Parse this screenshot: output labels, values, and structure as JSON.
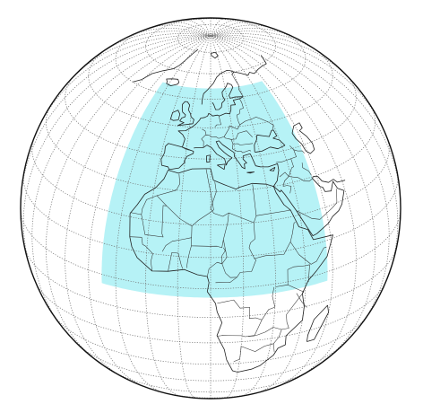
{
  "map": {
    "projection": "orthographic",
    "center": {
      "lon": 10,
      "lat": 25
    },
    "graticule_step_deg": 10,
    "domain": {
      "lon_min": -25,
      "lon_max": 48,
      "lat_min": -3,
      "lat_max": 64
    },
    "colors": {
      "background": "#ffffff",
      "globe_outline": "#111111",
      "graticule": "#6e6e6e",
      "coastline": "#222222",
      "borders": "#333333",
      "domain_fill": "#aef1f5"
    }
  }
}
